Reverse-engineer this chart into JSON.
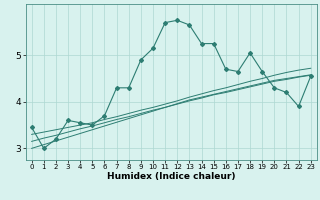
{
  "title": "",
  "xlabel": "Humidex (Indice chaleur)",
  "bg_color": "#d8f2ee",
  "line_color": "#2d7d72",
  "grid_color": "#aed8d2",
  "x_data": [
    0,
    1,
    2,
    3,
    4,
    5,
    6,
    7,
    8,
    9,
    10,
    11,
    12,
    13,
    14,
    15,
    16,
    17,
    18,
    19,
    20,
    21,
    22,
    23
  ],
  "main_line": [
    3.45,
    3.0,
    3.2,
    3.6,
    3.55,
    3.5,
    3.7,
    4.3,
    4.3,
    4.9,
    5.15,
    5.7,
    5.75,
    5.65,
    5.25,
    5.25,
    4.7,
    4.65,
    5.05,
    4.65,
    4.3,
    4.2,
    3.9,
    4.55
  ],
  "trend1": [
    3.3,
    3.35,
    3.4,
    3.45,
    3.5,
    3.55,
    3.62,
    3.68,
    3.75,
    3.82,
    3.88,
    3.95,
    4.02,
    4.1,
    4.17,
    4.24,
    4.3,
    4.37,
    4.44,
    4.5,
    4.57,
    4.63,
    4.68,
    4.72
  ],
  "trend2": [
    3.15,
    3.22,
    3.28,
    3.35,
    3.42,
    3.48,
    3.55,
    3.62,
    3.68,
    3.75,
    3.82,
    3.88,
    3.95,
    4.02,
    4.08,
    4.15,
    4.2,
    4.26,
    4.32,
    4.38,
    4.44,
    4.48,
    4.53,
    4.57
  ],
  "trend3": [
    3.0,
    3.08,
    3.16,
    3.24,
    3.32,
    3.4,
    3.48,
    3.56,
    3.64,
    3.72,
    3.8,
    3.88,
    3.96,
    4.04,
    4.1,
    4.16,
    4.22,
    4.28,
    4.34,
    4.4,
    4.46,
    4.5,
    4.54,
    4.58
  ],
  "ylim": [
    2.75,
    6.1
  ],
  "xlim": [
    -0.5,
    23.5
  ],
  "yticks": [
    3,
    4,
    5
  ],
  "xticks": [
    0,
    1,
    2,
    3,
    4,
    5,
    6,
    7,
    8,
    9,
    10,
    11,
    12,
    13,
    14,
    15,
    16,
    17,
    18,
    19,
    20,
    21,
    22,
    23
  ],
  "figsize": [
    3.2,
    2.0
  ],
  "dpi": 100
}
